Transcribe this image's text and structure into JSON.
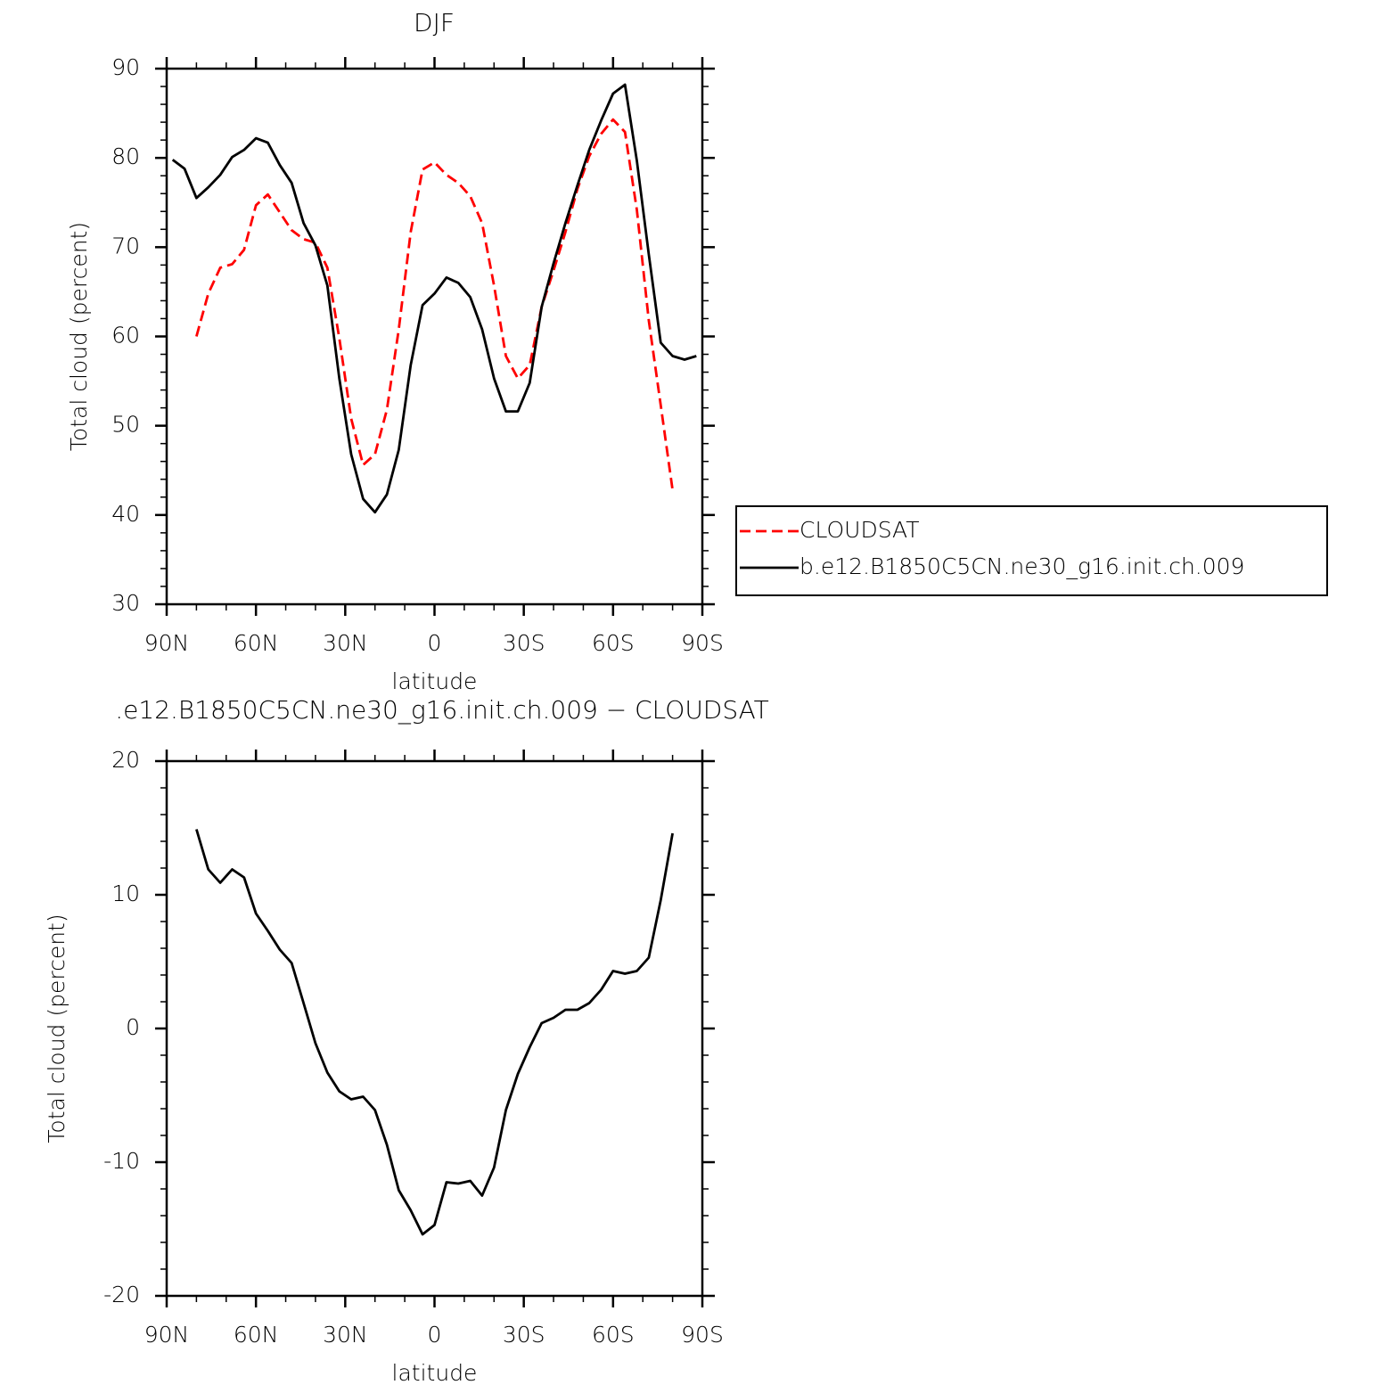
{
  "chart_data": [
    {
      "type": "line",
      "title": "DJF",
      "xlabel": "latitude",
      "ylabel": "Total cloud (percent)",
      "x": [
        88,
        84,
        80,
        76,
        72,
        68,
        64,
        60,
        56,
        52,
        48,
        44,
        40,
        36,
        32,
        28,
        24,
        20,
        16,
        12,
        8,
        4,
        0,
        -4,
        -8,
        -12,
        -16,
        -20,
        -24,
        -28,
        -32,
        -36,
        -40,
        -44,
        -48,
        -52,
        -56,
        -60,
        -64,
        -68,
        -72,
        -76,
        -80,
        -84,
        -88
      ],
      "series": [
        {
          "name": "CLOUDSAT",
          "color": "#ff0000",
          "linestyle": "dashed",
          "values": [
            null,
            null,
            60.0,
            64.8,
            67.7,
            68.1,
            69.7,
            74.7,
            75.9,
            73.9,
            71.9,
            70.9,
            70.5,
            67.7,
            59.8,
            50.8,
            45.6,
            46.8,
            51.8,
            60.8,
            71.7,
            78.7,
            79.5,
            78.1,
            77.2,
            75.7,
            72.7,
            65.7,
            57.8,
            55.3,
            56.8,
            63.3,
            67.4,
            71.7,
            76.5,
            80.2,
            82.7,
            84.3,
            82.9,
            74.2,
            61.8,
            52.3,
            42.8,
            null,
            null
          ]
        },
        {
          "name": "b.e12.B1850C5CN.ne30_g16.init.ch.009",
          "color": "#000000",
          "linestyle": "solid",
          "values": [
            79.8,
            78.8,
            75.5,
            76.7,
            78.1,
            80.1,
            80.9,
            82.2,
            81.7,
            79.2,
            77.2,
            72.7,
            70.2,
            65.7,
            55.3,
            46.8,
            41.8,
            40.3,
            42.3,
            47.3,
            56.8,
            63.5,
            64.8,
            66.6,
            66.0,
            64.4,
            60.8,
            55.3,
            51.6,
            51.6,
            54.8,
            63.3,
            68.2,
            72.7,
            76.9,
            80.9,
            84.2,
            87.2,
            88.2,
            79.7,
            69.2,
            59.3,
            57.8,
            57.4,
            57.8
          ]
        }
      ],
      "xlim": [
        90,
        -90
      ],
      "xticks": [
        {
          "value": 90,
          "label": "90N"
        },
        {
          "value": 60,
          "label": "60N"
        },
        {
          "value": 30,
          "label": "30N"
        },
        0,
        {
          "value": -30,
          "label": "30S"
        },
        {
          "value": -60,
          "label": "60S"
        },
        {
          "value": -90,
          "label": "90S"
        }
      ],
      "ylim": [
        30,
        90
      ],
      "yticks": [
        30,
        40,
        50,
        60,
        70,
        80,
        90
      ],
      "legend": "outside-right"
    },
    {
      "type": "line",
      "title": ".e12.B1850C5CN.ne30_g16.init.ch.009 − CLOUDSAT",
      "xlabel": "latitude",
      "ylabel": "Total cloud (percent)",
      "x": [
        88,
        84,
        80,
        76,
        72,
        68,
        64,
        60,
        56,
        52,
        48,
        44,
        40,
        36,
        32,
        28,
        24,
        20,
        16,
        12,
        8,
        4,
        0,
        -4,
        -8,
        -12,
        -16,
        -20,
        -24,
        -28,
        -32,
        -36,
        -40,
        -44,
        -48,
        -52,
        -56,
        -60,
        -64,
        -68,
        -72,
        -76,
        -80,
        -84,
        -88
      ],
      "series": [
        {
          "color": "#000000",
          "linestyle": "solid",
          "values": [
            null,
            null,
            14.9,
            11.9,
            10.9,
            11.9,
            11.3,
            8.6,
            7.3,
            5.9,
            4.9,
            1.9,
            -1.1,
            -3.3,
            -4.7,
            -5.3,
            -5.1,
            -6.1,
            -8.7,
            -12.1,
            -13.6,
            -15.4,
            -14.7,
            -11.5,
            -11.6,
            -11.4,
            -12.5,
            -10.4,
            -6.1,
            -3.4,
            -1.4,
            0.4,
            0.8,
            1.4,
            1.4,
            1.9,
            2.9,
            4.3,
            4.1,
            4.3,
            5.3,
            9.6,
            14.6,
            null,
            null
          ]
        }
      ],
      "xlim": [
        90,
        -90
      ],
      "xticks": [
        {
          "value": 90,
          "label": "90N"
        },
        {
          "value": 60,
          "label": "60N"
        },
        {
          "value": 30,
          "label": "30N"
        },
        0,
        {
          "value": -30,
          "label": "30S"
        },
        {
          "value": -60,
          "label": "60S"
        },
        {
          "value": -90,
          "label": "90S"
        }
      ],
      "ylim": [
        -20,
        20
      ],
      "yticks": [
        -20,
        -10,
        0,
        10,
        20
      ]
    }
  ]
}
